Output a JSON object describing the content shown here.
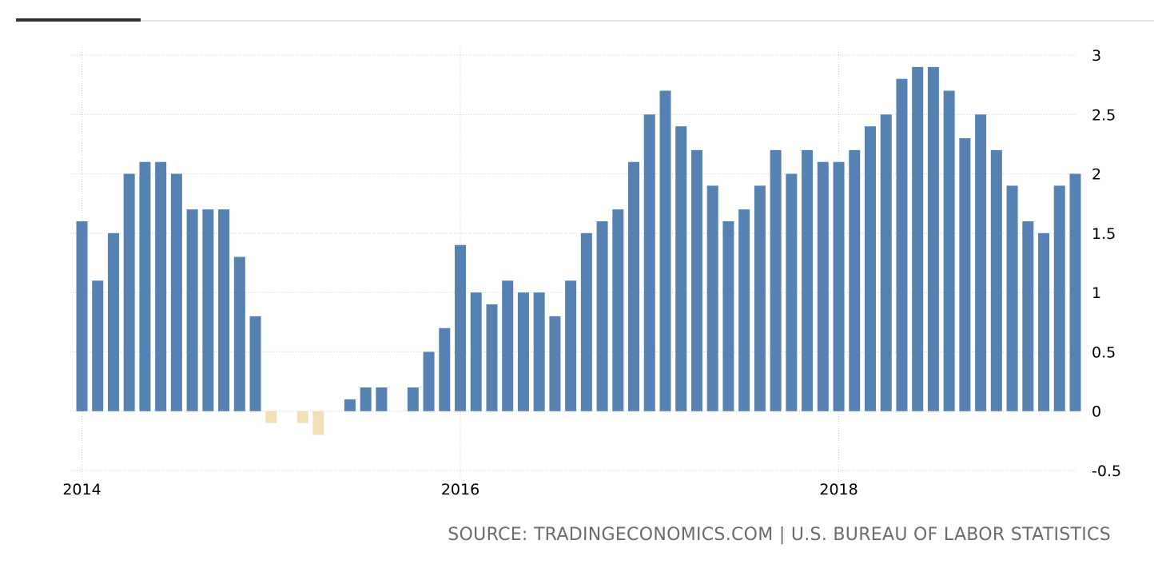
{
  "colors": {
    "positive": "#5682b3",
    "negative": "#f3dfb5",
    "grid": "#cfcfcf",
    "tab_active": "#333333",
    "tab_rule": "#dddddd"
  },
  "source_text": "SOURCE: TRADINGECONOMICS.COM | U.S. BUREAU OF LABOR STATISTICS",
  "chart_data": {
    "type": "bar",
    "title": "",
    "xlabel": "",
    "ylabel": "",
    "x_ticks": [
      "2014",
      "2016",
      "2018"
    ],
    "y_ticks": [
      "3",
      "2.5",
      "2",
      "1.5",
      "1",
      "0.5",
      "0",
      "-0.5"
    ],
    "ylim": [
      -0.5,
      3
    ],
    "grid": true,
    "y_axis_position": "right",
    "categories": [
      "2014-01",
      "2014-02",
      "2014-03",
      "2014-04",
      "2014-05",
      "2014-06",
      "2014-07",
      "2014-08",
      "2014-09",
      "2014-10",
      "2014-11",
      "2014-12",
      "2015-01",
      "2015-02",
      "2015-03",
      "2015-04",
      "2015-05",
      "2015-06",
      "2015-07",
      "2015-08",
      "2015-09",
      "2015-10",
      "2015-11",
      "2015-12",
      "2016-01",
      "2016-02",
      "2016-03",
      "2016-04",
      "2016-05",
      "2016-06",
      "2016-07",
      "2016-08",
      "2016-09",
      "2016-10",
      "2016-11",
      "2016-12",
      "2017-01",
      "2017-02",
      "2017-03",
      "2017-04",
      "2017-05",
      "2017-06",
      "2017-07",
      "2017-08",
      "2017-09",
      "2017-10",
      "2017-11",
      "2017-12",
      "2018-01",
      "2018-02",
      "2018-03",
      "2018-04",
      "2018-05",
      "2018-06",
      "2018-07",
      "2018-08",
      "2018-09",
      "2018-10",
      "2018-11",
      "2018-12",
      "2019-01",
      "2019-02",
      "2019-03",
      "2019-04"
    ],
    "values": [
      1.6,
      1.1,
      1.5,
      2.0,
      2.1,
      2.1,
      2.0,
      1.7,
      1.7,
      1.7,
      1.3,
      0.8,
      -0.1,
      0.0,
      -0.1,
      -0.2,
      0.0,
      0.1,
      0.2,
      0.2,
      0.0,
      0.2,
      0.5,
      0.7,
      1.4,
      1.0,
      0.9,
      1.1,
      1.0,
      1.0,
      0.8,
      1.1,
      1.5,
      1.6,
      1.7,
      2.1,
      2.5,
      2.7,
      2.4,
      2.2,
      1.9,
      1.6,
      1.7,
      1.9,
      2.2,
      2.0,
      2.2,
      2.1,
      2.1,
      2.2,
      2.4,
      2.5,
      2.8,
      2.9,
      2.9,
      2.7,
      2.3,
      2.5,
      2.2,
      1.9,
      1.6,
      1.5,
      1.9,
      2.0
    ]
  }
}
